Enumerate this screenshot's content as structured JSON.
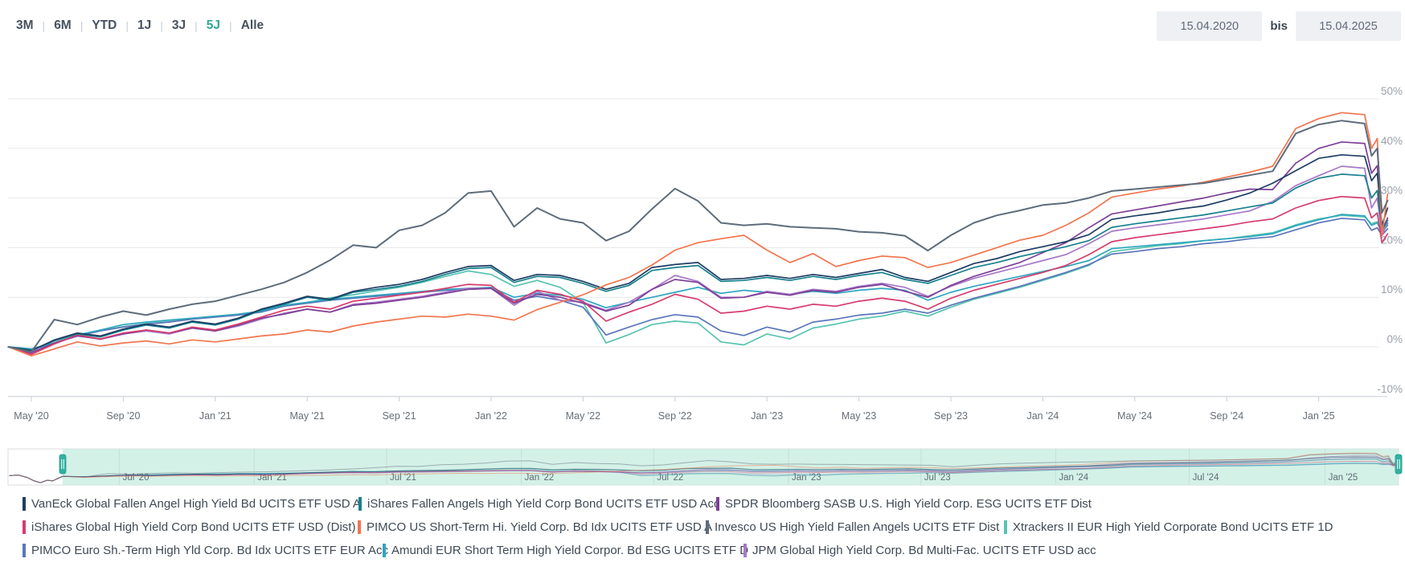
{
  "toolbar": {
    "ranges": [
      {
        "label": "3M",
        "active": false
      },
      {
        "label": "6M",
        "active": false
      },
      {
        "label": "YTD",
        "active": false
      },
      {
        "label": "1J",
        "active": false
      },
      {
        "label": "3J",
        "active": false
      },
      {
        "label": "5J",
        "active": true
      },
      {
        "label": "Alle",
        "active": false
      }
    ],
    "separator": "|",
    "date_from": "15.04.2020",
    "date_connector": "bis",
    "date_to": "15.04.2025",
    "accent_color": "#2fa796"
  },
  "chart_data": {
    "type": "line",
    "title": "",
    "ylabel": "",
    "unit": "%",
    "x_unit": "months since 2020-04-15",
    "ylim": [
      -12,
      52
    ],
    "grid": true,
    "legend_position": "bottom",
    "y_ticks": [
      {
        "label": "50%",
        "value": 50
      },
      {
        "label": "40%",
        "value": 40
      },
      {
        "label": "30%",
        "value": 30
      },
      {
        "label": "20%",
        "value": 20
      },
      {
        "label": "10%",
        "value": 10
      },
      {
        "label": "0%",
        "value": 0
      },
      {
        "label": "-10%",
        "value": -10
      }
    ],
    "x_ticks": [
      {
        "label": "May '20",
        "month": 1
      },
      {
        "label": "Sep '20",
        "month": 5
      },
      {
        "label": "Jan '21",
        "month": 9
      },
      {
        "label": "May '21",
        "month": 13
      },
      {
        "label": "Sep '21",
        "month": 17
      },
      {
        "label": "Jan '22",
        "month": 21
      },
      {
        "label": "May '22",
        "month": 25
      },
      {
        "label": "Sep '22",
        "month": 29
      },
      {
        "label": "Jan '23",
        "month": 33
      },
      {
        "label": "May '23",
        "month": 37
      },
      {
        "label": "Sep '23",
        "month": 41
      },
      {
        "label": "Jan '24",
        "month": 45
      },
      {
        "label": "May '24",
        "month": 49
      },
      {
        "label": "Sep '24",
        "month": 53
      },
      {
        "label": "Jan '25",
        "month": 57
      }
    ],
    "z_order": [
      6,
      7,
      8,
      9,
      2,
      3,
      1,
      0,
      4,
      5
    ],
    "series": [
      {
        "key": "vaneck",
        "name": "VanEck Global Fallen Angel High Yield Bd UCITS ETF USD A",
        "color": "#1e3d63",
        "values": [
          0,
          -0.8,
          1.4,
          2.8,
          2.2,
          3.6,
          4.6,
          4.0,
          5.2,
          4.6,
          5.8,
          7.6,
          8.8,
          10.2,
          9.6,
          11.2,
          12.0,
          12.6,
          13.6,
          15.0,
          16.2,
          16.4,
          13.4,
          14.6,
          14.4,
          13.2,
          11.6,
          12.8,
          16.0,
          16.6,
          17.0,
          13.6,
          13.8,
          14.4,
          13.8,
          14.6,
          14.0,
          14.8,
          15.6,
          14.0,
          13.2,
          15.0,
          16.8,
          17.8,
          19.2,
          20.2,
          21.2,
          22.6,
          25.7,
          26.4,
          27.0,
          27.8,
          28.4,
          29.6,
          31.0,
          33.0,
          35.5,
          38.0,
          38.7,
          38.4
        ],
        "extra": [
          [
            59.3,
            33.5
          ],
          [
            59.55,
            35.0
          ],
          [
            59.75,
            24.5
          ],
          [
            60,
            28.0
          ]
        ]
      },
      {
        "key": "ishares-fa",
        "name": "iShares Fallen Angels High Yield Corp Bond UCITS ETF USD Acc",
        "color": "#18808e",
        "values": [
          0,
          -0.6,
          1.2,
          2.6,
          2.0,
          3.4,
          4.4,
          3.8,
          5.0,
          4.4,
          5.6,
          7.4,
          8.6,
          10.0,
          9.4,
          11.0,
          11.6,
          12.2,
          13.2,
          14.6,
          15.8,
          16.0,
          13.0,
          14.2,
          14.0,
          12.8,
          11.2,
          12.4,
          15.4,
          16.0,
          16.4,
          13.2,
          13.4,
          14.0,
          13.4,
          14.2,
          13.6,
          14.4,
          15.0,
          13.6,
          12.8,
          14.4,
          16.0,
          17.0,
          18.2,
          19.2,
          20.2,
          21.4,
          24.1,
          24.8,
          25.4,
          26.0,
          26.6,
          27.4,
          28.2,
          29.0,
          32.0,
          34.0,
          34.8,
          34.5
        ],
        "extra": [
          [
            59.3,
            30.0
          ],
          [
            59.55,
            31.5
          ],
          [
            59.75,
            23.5
          ],
          [
            60,
            25.5
          ]
        ]
      },
      {
        "key": "spdr",
        "name": "SPDR Bloomberg SASB U.S. High Yield Corp. ESG UCITS ETF Dist",
        "color": "#7e3f97",
        "values": [
          0,
          -1.2,
          0.8,
          2.2,
          1.6,
          2.6,
          3.4,
          2.8,
          3.8,
          3.2,
          4.4,
          5.8,
          6.6,
          7.6,
          7.0,
          8.4,
          8.8,
          9.4,
          10.0,
          10.8,
          11.6,
          11.8,
          8.8,
          10.6,
          10.0,
          8.8,
          7.2,
          8.4,
          11.6,
          13.6,
          13.0,
          9.8,
          10.0,
          11.0,
          10.4,
          11.4,
          11.0,
          12.0,
          12.6,
          11.2,
          10.0,
          12.4,
          14.2,
          15.6,
          17.0,
          19.0,
          21.0,
          24.0,
          26.8,
          27.6,
          28.4,
          29.2,
          30.0,
          31.0,
          31.8,
          31.7,
          37.0,
          40.0,
          41.3,
          41.0
        ],
        "extra": [
          [
            59.3,
            35.0
          ],
          [
            59.55,
            36.5
          ],
          [
            59.75,
            23.5
          ],
          [
            60,
            26.0
          ]
        ]
      },
      {
        "key": "ishares-gl",
        "name": "iShares Global High Yield Corp Bond UCITS ETF USD (Dist)",
        "color": "#d63c6d",
        "values": [
          0,
          -1.5,
          0.6,
          2.4,
          1.6,
          2.8,
          3.4,
          2.8,
          4.0,
          3.4,
          4.6,
          6.0,
          7.4,
          8.2,
          7.6,
          9.2,
          9.8,
          10.4,
          11.0,
          11.8,
          12.6,
          12.4,
          9.0,
          11.4,
          10.6,
          9.2,
          5.2,
          7.0,
          8.6,
          10.6,
          9.6,
          6.8,
          7.2,
          8.2,
          7.6,
          8.6,
          8.2,
          9.2,
          9.8,
          9.2,
          7.6,
          9.8,
          11.4,
          12.6,
          13.8,
          15.0,
          16.4,
          18.6,
          21.2,
          22.0,
          22.6,
          23.2,
          23.8,
          24.4,
          25.2,
          25.8,
          28.0,
          29.5,
          30.3,
          30.0
        ],
        "extra": [
          [
            59.3,
            26.0
          ],
          [
            59.55,
            27.0
          ],
          [
            59.75,
            21.0
          ],
          [
            60,
            22.8
          ]
        ]
      },
      {
        "key": "pimco-us",
        "name": "PIMCO US Short-Term Hi. Yield Corp. Bd Idx UCITS ETF USD A",
        "color": "#f1754e",
        "values": [
          0,
          -1.8,
          -0.4,
          1.0,
          0.2,
          0.8,
          1.2,
          0.6,
          1.4,
          1.0,
          1.6,
          2.2,
          2.6,
          3.4,
          3.0,
          4.2,
          5.0,
          5.6,
          6.2,
          6.0,
          6.6,
          6.2,
          5.4,
          7.5,
          9.0,
          10.5,
          12.5,
          14.0,
          16.5,
          19.5,
          21.0,
          21.8,
          22.5,
          19.5,
          17.0,
          18.8,
          16.2,
          17.4,
          18.3,
          18.0,
          16.0,
          17.0,
          18.5,
          20.0,
          21.5,
          22.5,
          24.5,
          27.0,
          30.2,
          31.0,
          31.8,
          32.4,
          33.2,
          34.2,
          35.2,
          36.4,
          44.0,
          46.0,
          47.2,
          46.8
        ],
        "extra": [
          [
            59.3,
            40.0
          ],
          [
            59.55,
            42.0
          ],
          [
            59.75,
            22.5
          ],
          [
            60,
            30.8
          ]
        ]
      },
      {
        "key": "invesco",
        "name": "Invesco US High Yield Fallen Angels UCITS ETF Dist",
        "color": "#5d6c7b",
        "values": [
          0,
          -1.0,
          5.5,
          4.5,
          6.0,
          7.2,
          6.4,
          7.6,
          8.6,
          9.2,
          10.4,
          11.6,
          13.0,
          15.0,
          17.5,
          20.5,
          20.0,
          23.5,
          24.5,
          27.0,
          31.0,
          31.4,
          24.2,
          28.0,
          25.8,
          25.0,
          21.4,
          23.3,
          27.8,
          31.9,
          29.4,
          25.0,
          24.5,
          24.8,
          24.2,
          24.0,
          23.8,
          23.2,
          23.0,
          22.4,
          19.4,
          22.5,
          25.0,
          26.5,
          27.5,
          28.6,
          29.0,
          30.0,
          31.4,
          31.8,
          32.2,
          32.6,
          33.0,
          33.8,
          34.6,
          35.4,
          43.0,
          44.8,
          45.6,
          45.0
        ],
        "extra": [
          [
            59.3,
            38.5
          ],
          [
            59.55,
            40.0
          ],
          [
            59.75,
            27.0
          ],
          [
            60,
            29.5
          ]
        ]
      },
      {
        "key": "xtrackers",
        "name": "Xtrackers II EUR High Yield Corporate Bond UCITS ETF 1D",
        "color": "#56c3b0",
        "values": [
          0,
          -0.6,
          0.8,
          2.3,
          3.3,
          4.1,
          4.7,
          5.1,
          5.7,
          6.1,
          6.5,
          7.1,
          8.3,
          8.9,
          9.9,
          10.5,
          11.3,
          12.0,
          13.0,
          14.2,
          15.3,
          14.6,
          12.2,
          13.4,
          12.0,
          9.0,
          0.8,
          2.5,
          4.5,
          5.2,
          4.8,
          1.0,
          0.4,
          2.6,
          1.6,
          3.8,
          4.6,
          5.6,
          6.2,
          7.2,
          6.2,
          8.0,
          9.6,
          10.8,
          12.0,
          13.4,
          14.8,
          16.4,
          19.2,
          19.8,
          20.4,
          20.8,
          21.4,
          21.8,
          22.4,
          23.0,
          24.6,
          25.8,
          26.5,
          26.2
        ],
        "extra": [
          [
            59.3,
            24.8
          ],
          [
            59.55,
            25.2
          ],
          [
            59.75,
            23.5
          ],
          [
            60,
            24.8
          ]
        ]
      },
      {
        "key": "pimco-eur",
        "name": "PIMCO Euro Sh.-Term High Yld Corp. Bd Idx UCITS ETF EUR Acc",
        "color": "#5b76ba",
        "values": [
          0,
          -0.5,
          0.7,
          2.2,
          3.2,
          4.0,
          4.6,
          5.0,
          5.6,
          6.0,
          6.4,
          7.0,
          8.2,
          8.8,
          9.4,
          9.8,
          10.2,
          10.6,
          11.0,
          11.4,
          11.6,
          11.8,
          9.4,
          10.2,
          9.4,
          8.0,
          2.4,
          4.0,
          5.5,
          6.5,
          6.0,
          3.2,
          2.3,
          4.0,
          3.0,
          5.0,
          5.6,
          6.4,
          6.8,
          7.6,
          6.8,
          8.4,
          9.8,
          11.0,
          12.2,
          13.6,
          15.0,
          16.6,
          18.7,
          19.2,
          19.8,
          20.2,
          20.8,
          21.2,
          21.8,
          22.2,
          23.6,
          25.0,
          25.9,
          25.6
        ],
        "extra": [
          [
            59.3,
            23.5
          ],
          [
            59.55,
            24.0
          ],
          [
            59.75,
            22.5
          ],
          [
            60,
            23.8
          ]
        ]
      },
      {
        "key": "amundi",
        "name": "Amundi EUR Short Term High Yield Corpor. Bd ESG UCITS ETF D",
        "color": "#2ea6c0",
        "values": [
          0,
          -0.4,
          0.8,
          2.4,
          3.4,
          4.5,
          5.0,
          5.4,
          5.8,
          6.2,
          6.6,
          7.2,
          8.4,
          9.0,
          9.6,
          10.0,
          10.4,
          10.8,
          11.2,
          11.6,
          11.8,
          12.0,
          10.0,
          10.8,
          10.4,
          9.6,
          7.9,
          9.0,
          10.0,
          11.0,
          12.0,
          10.8,
          11.4,
          11.0,
          10.6,
          11.2,
          10.8,
          11.4,
          11.8,
          11.4,
          9.4,
          11.0,
          12.2,
          13.2,
          14.2,
          15.2,
          16.2,
          17.4,
          19.8,
          20.2,
          20.6,
          21.0,
          21.4,
          21.8,
          22.2,
          22.8,
          24.4,
          25.6,
          26.7,
          26.4
        ],
        "extra": [
          [
            59.3,
            24.5
          ],
          [
            59.55,
            25.0
          ],
          [
            59.75,
            23.0
          ],
          [
            60,
            24.5
          ]
        ]
      },
      {
        "key": "jpm",
        "name": "JPM Global High Yield Corp. Bd Multi-Fac. UCITS ETF USD acc",
        "color": "#a678c8",
        "values": [
          0,
          -1.0,
          0.6,
          2.4,
          1.5,
          2.6,
          3.2,
          2.6,
          3.8,
          3.2,
          4.2,
          5.6,
          6.8,
          7.6,
          7.0,
          8.6,
          9.0,
          9.6,
          10.2,
          11.0,
          11.8,
          11.8,
          8.4,
          11.2,
          9.4,
          9.0,
          7.4,
          9.0,
          11.6,
          14.4,
          13.2,
          10.0,
          10.0,
          11.2,
          10.6,
          11.6,
          11.2,
          12.2,
          12.8,
          12.0,
          10.2,
          12.2,
          13.8,
          15.0,
          16.2,
          17.4,
          18.6,
          20.8,
          23.3,
          24.0,
          24.6,
          25.2,
          25.8,
          26.6,
          27.4,
          29.3,
          32.5,
          34.5,
          36.4,
          36.0
        ],
        "extra": [
          [
            59.3,
            28.0
          ],
          [
            59.55,
            30.0
          ],
          [
            59.75,
            22.5
          ],
          [
            60,
            25.0
          ]
        ]
      }
    ],
    "navigator": {
      "selected_range_color": "#cdeee3",
      "handle_color": "#30b2a1",
      "labels": [
        {
          "label": "Jul '20",
          "month": 2.55
        },
        {
          "label": "Jan '21",
          "month": 8.6
        },
        {
          "label": "Jul '21",
          "month": 14.55
        },
        {
          "label": "Jan '22",
          "month": 20.6
        },
        {
          "label": "Jul '22",
          "month": 26.55
        },
        {
          "label": "Jan '23",
          "month": 32.6
        },
        {
          "label": "Jul '23",
          "month": 38.55
        },
        {
          "label": "Jan '24",
          "month": 44.6
        },
        {
          "label": "Jul '24",
          "month": 50.6
        },
        {
          "label": "Jan '25",
          "month": 56.7
        }
      ],
      "prelude": [
        [
          -2.4,
          1.5
        ],
        [
          -2.0,
          3.0
        ],
        [
          -1.6,
          -2.0
        ],
        [
          -1.3,
          -8.5
        ],
        [
          -1.0,
          -12.5
        ],
        [
          -0.7,
          -7.5
        ],
        [
          -0.45,
          -9.0
        ],
        [
          -0.2,
          -3.5
        ],
        [
          0,
          0
        ]
      ]
    }
  },
  "legend": {
    "rows": [
      {
        "y": 619,
        "items": [
          {
            "series": 0,
            "x": 28
          },
          {
            "series": 1,
            "x": 446
          },
          {
            "series": 2,
            "x": 891
          }
        ]
      },
      {
        "y": 648,
        "items": [
          {
            "series": 3,
            "x": 28
          },
          {
            "series": 4,
            "x": 445
          },
          {
            "series": 5,
            "x": 878
          },
          {
            "series": 6,
            "x": 1249
          }
        ]
      },
      {
        "y": 677,
        "items": [
          {
            "series": 7,
            "x": 28
          },
          {
            "series": 8,
            "x": 476
          },
          {
            "series": 9,
            "x": 925
          }
        ]
      }
    ]
  }
}
